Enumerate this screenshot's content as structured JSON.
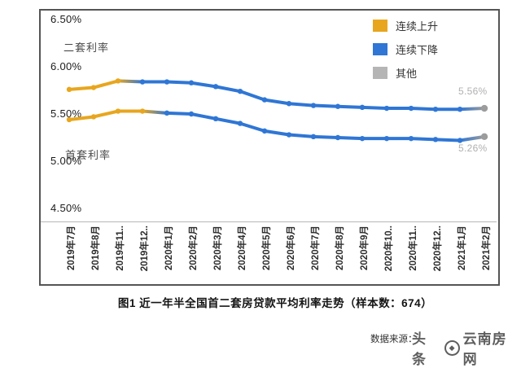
{
  "chart_data": {
    "type": "line",
    "categories": [
      "2019年7月",
      "2019年8月",
      "2019年11..",
      "2019年12..",
      "2020年1月",
      "2020年2月",
      "2020年3月",
      "2020年4月",
      "2020年5月",
      "2020年6月",
      "2020年7月",
      "2020年8月",
      "2020年9月",
      "2020年10..",
      "2020年11..",
      "2020年12..",
      "2021年1月",
      "2021年2月"
    ],
    "series": [
      {
        "name": "二套利率",
        "values": [
          5.76,
          5.78,
          5.85,
          5.84,
          5.84,
          5.83,
          5.79,
          5.74,
          5.65,
          5.61,
          5.59,
          5.58,
          5.57,
          5.56,
          5.56,
          5.55,
          5.55,
          5.56
        ],
        "phases": [
          "up",
          "up",
          "up",
          "down",
          "down",
          "down",
          "down",
          "down",
          "down",
          "down",
          "down",
          "down",
          "down",
          "down",
          "down",
          "down",
          "down",
          "other"
        ],
        "end_label": "5.56%"
      },
      {
        "name": "首套利率",
        "values": [
          5.44,
          5.47,
          5.53,
          5.53,
          5.51,
          5.5,
          5.45,
          5.4,
          5.32,
          5.28,
          5.26,
          5.25,
          5.24,
          5.24,
          5.24,
          5.23,
          5.22,
          5.26
        ],
        "phases": [
          "up",
          "up",
          "up",
          "up",
          "down",
          "down",
          "down",
          "down",
          "down",
          "down",
          "down",
          "down",
          "down",
          "down",
          "down",
          "down",
          "down",
          "other"
        ],
        "end_label": "5.26%"
      }
    ],
    "y_ticks": [
      "6.50%",
      "6.00%",
      "5.50%",
      "5.00%",
      "4.50%"
    ],
    "y_tick_values": [
      6.5,
      6.0,
      5.5,
      5.0,
      4.5
    ],
    "ylim": [
      4.4,
      6.6
    ],
    "grid": false,
    "legend": {
      "position": "top-right",
      "items": [
        {
          "label": "连续上升",
          "color": "#E8A61E",
          "phase": "up"
        },
        {
          "label": "连续下降",
          "color": "#2F76D5",
          "phase": "down"
        },
        {
          "label": "其他",
          "color": "#B5B5B5",
          "phase": "other"
        }
      ]
    },
    "phase_colors": {
      "up": "#E8A61E",
      "down": "#2F76D5",
      "other": "#9C9C9C"
    },
    "marker_gray": "#9C9C9C"
  },
  "caption": {
    "text": "图1 近一年半全国首二套房贷款平均利率走势（样本数：674）"
  },
  "source": {
    "label": "数据来源："
  },
  "watermark": {
    "prefix": "头条",
    "logo": "circle-logo",
    "name": "云南房网"
  }
}
